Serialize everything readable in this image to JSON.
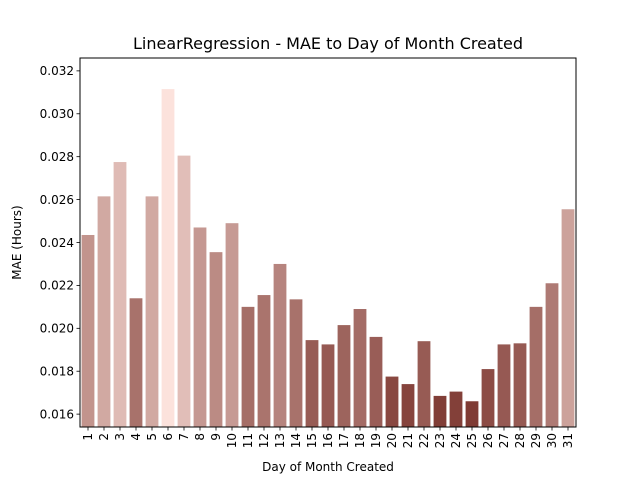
{
  "chart_data": {
    "type": "bar",
    "title": "LinearRegression - MAE to Day of Month Created",
    "xlabel": "Day of Month Created",
    "ylabel": "MAE (Hours)",
    "ylim": [
      0.0154,
      0.0326
    ],
    "yticks": [
      0.016,
      0.018,
      0.02,
      0.022,
      0.024,
      0.026,
      0.028,
      0.03,
      0.032
    ],
    "ytick_labels": [
      "0.016",
      "0.018",
      "0.020",
      "0.022",
      "0.024",
      "0.026",
      "0.028",
      "0.030",
      "0.032"
    ],
    "grid": false,
    "categories": [
      "1",
      "2",
      "3",
      "4",
      "5",
      "6",
      "7",
      "8",
      "9",
      "10",
      "11",
      "12",
      "13",
      "14",
      "15",
      "16",
      "17",
      "18",
      "19",
      "20",
      "21",
      "22",
      "23",
      "24",
      "25",
      "26",
      "27",
      "28",
      "29",
      "30",
      "31"
    ],
    "values": [
      0.02435,
      0.02615,
      0.02775,
      0.0214,
      0.02615,
      0.03115,
      0.02805,
      0.0247,
      0.02355,
      0.0249,
      0.021,
      0.02155,
      0.023,
      0.02135,
      0.01945,
      0.01925,
      0.02015,
      0.0209,
      0.0196,
      0.01775,
      0.0174,
      0.0194,
      0.01685,
      0.01705,
      0.0166,
      0.0181,
      0.01925,
      0.0193,
      0.021,
      0.0221,
      0.02555
    ],
    "color_scale": {
      "low": "#7f3b34",
      "high": "#fce2dc"
    }
  }
}
